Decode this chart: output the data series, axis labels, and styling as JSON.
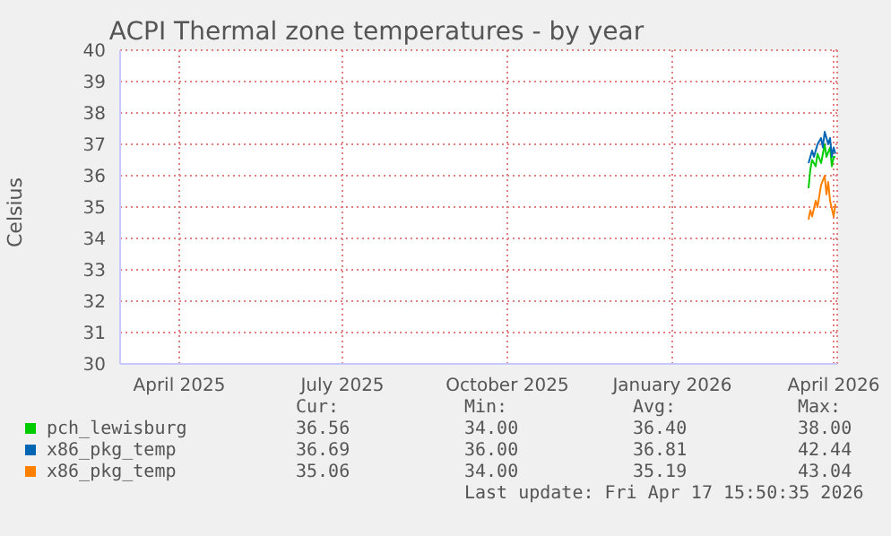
{
  "chart_data": {
    "type": "line",
    "title": "ACPI Thermal zone temperatures - by year",
    "ylabel": "Celsius",
    "xlim": [
      "2025-02-27",
      "2026-04-03"
    ],
    "xticks": [
      {
        "value": "2025-04-01",
        "label": "April 2025"
      },
      {
        "value": "2025-07-01",
        "label": "July 2025"
      },
      {
        "value": "2025-10-01",
        "label": "October 2025"
      },
      {
        "value": "2026-01-01",
        "label": "January 2026"
      },
      {
        "value": "2026-04-01",
        "label": "April 2026"
      }
    ],
    "ylim": [
      30,
      40
    ],
    "yticks": [
      30,
      31,
      32,
      33,
      34,
      35,
      36,
      37,
      38,
      39,
      40
    ],
    "grid": true,
    "legend": "bottom",
    "marker": "none",
    "line_style": "solid",
    "series": [
      {
        "name": "pch_lewisburg",
        "color": "#00cc00",
        "x": [
          "2026-03-18",
          "2026-03-19",
          "2026-03-20",
          "2026-03-22",
          "2026-03-23",
          "2026-03-25",
          "2026-03-27",
          "2026-03-28",
          "2026-03-30",
          "2026-03-31",
          "2026-04-01",
          "2026-04-02"
        ],
        "values": [
          35.6,
          36.2,
          36.5,
          36.3,
          36.7,
          36.4,
          37.0,
          36.6,
          36.9,
          36.3,
          36.6,
          36.6
        ]
      },
      {
        "name": "x86_pkg_temp",
        "color": "#0066b3",
        "x": [
          "2026-03-18",
          "2026-03-20",
          "2026-03-21",
          "2026-03-23",
          "2026-03-25",
          "2026-03-26",
          "2026-03-27",
          "2026-03-29",
          "2026-03-30",
          "2026-03-31",
          "2026-04-01",
          "2026-04-02"
        ],
        "values": [
          36.4,
          36.8,
          36.6,
          37.0,
          37.2,
          36.9,
          37.4,
          37.0,
          37.2,
          36.6,
          36.9,
          36.7
        ]
      },
      {
        "name": "x86_pkg_temp",
        "color": "#ff8000",
        "x": [
          "2026-03-18",
          "2026-03-19",
          "2026-03-20",
          "2026-03-22",
          "2026-03-23",
          "2026-03-25",
          "2026-03-27",
          "2026-03-28",
          "2026-03-29",
          "2026-03-30",
          "2026-04-01",
          "2026-04-02"
        ],
        "values": [
          34.6,
          34.9,
          34.7,
          35.2,
          35.0,
          35.7,
          36.0,
          35.4,
          35.8,
          35.2,
          34.7,
          35.1
        ]
      }
    ],
    "annotations": [
      "Cur:",
      "Min:",
      "Avg:",
      "Max:",
      "36.56",
      "34.00",
      "36.40",
      "38.00",
      "36.69",
      "36.00",
      "36.81",
      "42.44",
      "35.06",
      "34.00",
      "35.19",
      "43.04",
      "Last update: Fri Apr 17 15:50:35 2026"
    ]
  }
}
